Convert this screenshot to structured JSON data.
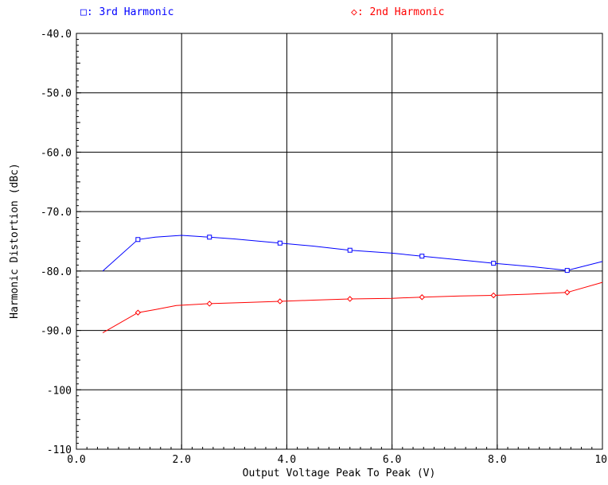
{
  "chart_data": {
    "type": "line",
    "xlabel": "Output Voltage Peak To Peak (V)",
    "ylabel": "Harmonic Distortion (dBc)",
    "xlim": [
      0,
      10
    ],
    "ylim": [
      -110,
      -40
    ],
    "x_ticks": [
      0,
      2,
      4,
      6,
      8,
      10
    ],
    "x_tick_labels": [
      "0.0",
      "2.0",
      "4.0",
      "6.0",
      "8.0",
      "10"
    ],
    "y_ticks": [
      -40,
      -50,
      -60,
      -70,
      -80,
      -90,
      -100,
      -110
    ],
    "y_tick_labels": [
      "-40.0",
      "-50.0",
      "-60.0",
      "-70.0",
      "-80.0",
      "-90.0",
      "-100",
      "-110"
    ],
    "grid": true,
    "legend_position": "top",
    "series": [
      {
        "name": "3rd Harmonic",
        "legend_label": "□: 3rd Harmonic",
        "color": "#0000ff",
        "marker": "square",
        "x": [
          0.5,
          1.17,
          1.5,
          2.0,
          2.53,
          3.0,
          3.87,
          4.5,
          5.2,
          6.0,
          6.57,
          7.5,
          7.93,
          8.7,
          9.33,
          10.0
        ],
        "y": [
          -80.0,
          -74.7,
          -74.3,
          -74.0,
          -74.3,
          -74.6,
          -75.3,
          -75.8,
          -76.5,
          -77.0,
          -77.5,
          -78.3,
          -78.7,
          -79.3,
          -79.9,
          -78.4
        ],
        "markers_x": [
          1.17,
          2.53,
          3.87,
          5.2,
          6.57,
          7.93,
          9.33
        ]
      },
      {
        "name": "2nd Harmonic",
        "legend_label": "◇: 2nd Harmonic",
        "color": "#ff0000",
        "marker": "diamond",
        "x": [
          0.5,
          1.17,
          1.5,
          1.9,
          2.53,
          3.2,
          3.87,
          4.5,
          5.2,
          6.0,
          6.57,
          7.3,
          7.93,
          8.6,
          9.33,
          10.0
        ],
        "y": [
          -90.4,
          -87.0,
          -86.5,
          -85.8,
          -85.5,
          -85.3,
          -85.1,
          -84.9,
          -84.7,
          -84.6,
          -84.4,
          -84.2,
          -84.1,
          -83.9,
          -83.6,
          -81.9
        ],
        "markers_x": [
          1.17,
          2.53,
          3.87,
          5.2,
          6.57,
          7.93,
          9.33
        ]
      }
    ],
    "colors": {
      "axis": "#000000",
      "grid": "#000000",
      "text": "#000000",
      "background": "#ffffff"
    }
  }
}
